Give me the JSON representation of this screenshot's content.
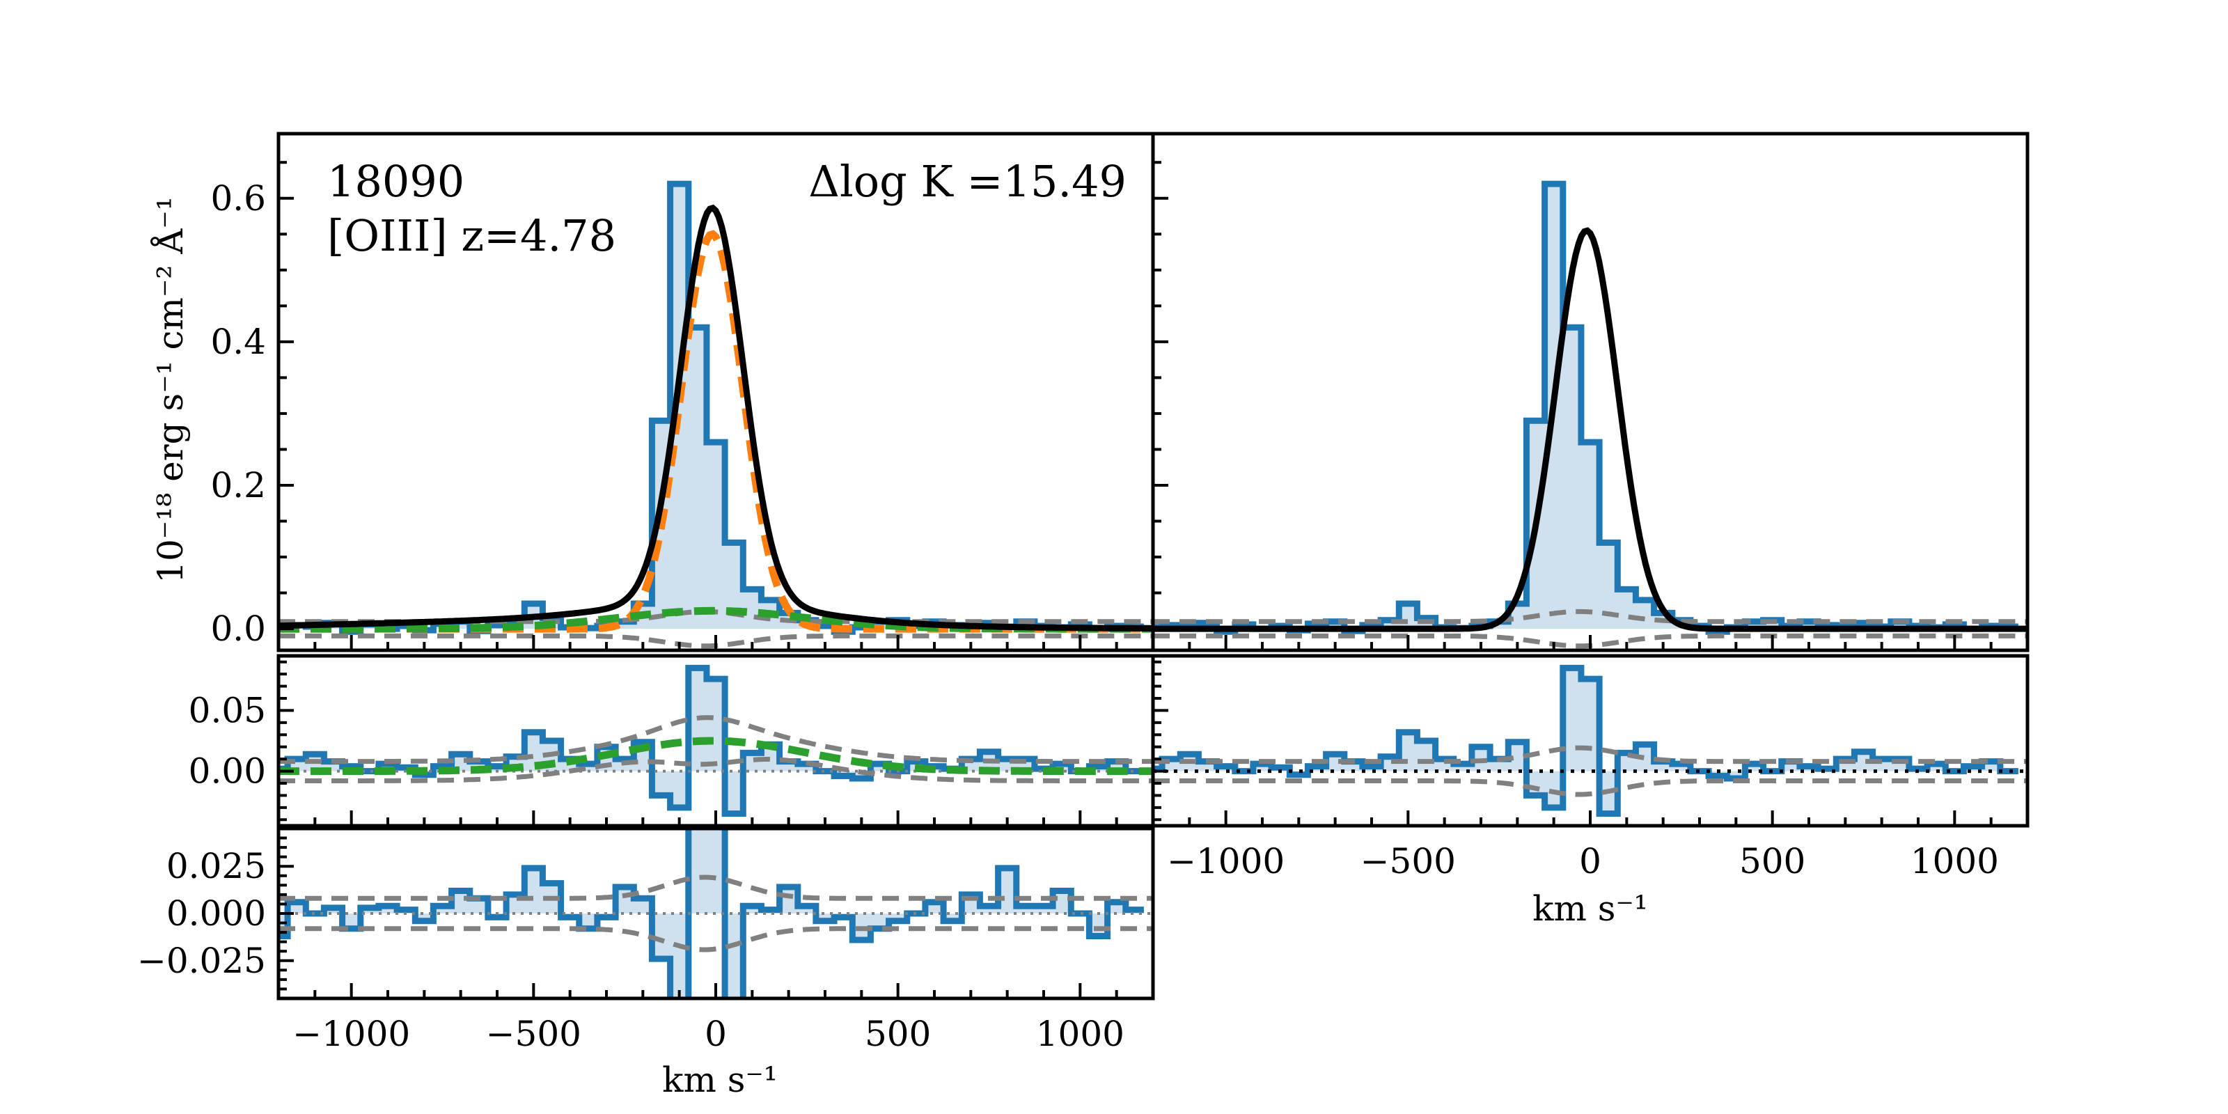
{
  "chart_data": {
    "type": "line",
    "object_id": "18090",
    "line_label": "[OIII] z=4.78",
    "delta_label": "Δlog K =15.49",
    "ylabel": "10⁻¹⁸ erg s⁻¹ cm⁻² Å⁻¹",
    "xlabel": "km s⁻¹",
    "xlim": [
      -1200,
      1200
    ],
    "x_ticks": [
      -1000,
      -500,
      0,
      500,
      1000
    ],
    "x_tick_labels": [
      "−1000",
      "−500",
      "0",
      "500",
      "1000"
    ],
    "panels": {
      "top_left": {
        "ylim": [
          -0.03,
          0.69
        ],
        "y_ticks": [
          0,
          0.2,
          0.4,
          0.6
        ],
        "y_tick_labels": [
          "0.0",
          "0.2",
          "0.4",
          "0.6"
        ],
        "components": [
          "data",
          "total_fit",
          "narrow",
          "broad",
          "noise"
        ]
      },
      "top_right": {
        "ylim": [
          -0.03,
          0.69
        ],
        "y_ticks": [
          0,
          0.2,
          0.4,
          0.6
        ],
        "components": [
          "data",
          "total_fit",
          "noise"
        ]
      },
      "mid_left": {
        "ylim": [
          -0.045,
          0.095
        ],
        "y_ticks": [
          0,
          0.05
        ],
        "y_tick_labels": [
          "0.00",
          "0.05"
        ],
        "components": [
          "data",
          "broad",
          "noise"
        ]
      },
      "mid_right": {
        "ylim": [
          -0.045,
          0.095
        ],
        "y_ticks": [
          0,
          0.05
        ],
        "components": [
          "data",
          "zero_line",
          "noise"
        ]
      },
      "bottom_left": {
        "ylim": [
          -0.045,
          0.045
        ],
        "y_ticks": [
          -0.025,
          0,
          0.025
        ],
        "y_tick_labels": [
          "−0.025",
          "0.000",
          "0.025"
        ],
        "components": [
          "data",
          "noise"
        ]
      }
    },
    "spectrum": {
      "x": [
        -1200,
        -1150,
        -1100,
        -1050,
        -1000,
        -950,
        -900,
        -850,
        -800,
        -750,
        -700,
        -650,
        -600,
        -550,
        -500,
        -450,
        -400,
        -350,
        -300,
        -250,
        -200,
        -150,
        -100,
        -50,
        0,
        50,
        100,
        150,
        200,
        250,
        300,
        350,
        400,
        450,
        500,
        550,
        600,
        650,
        700,
        750,
        800,
        850,
        900,
        950,
        1000,
        1050,
        1100,
        1150
      ],
      "y_full": [
        0.002,
        0.005,
        0.003,
        0.008,
        -0.004,
        0.006,
        0.0,
        0.004,
        -0.002,
        0.007,
        0.01,
        -0.003,
        0.005,
        0.012,
        0.035,
        0.015,
        0.002,
        0.001,
        0.004,
        0.01,
        0.035,
        0.29,
        0.62,
        0.42,
        0.26,
        0.12,
        0.055,
        0.04,
        0.022,
        0.012,
        0.004,
        -0.004,
        0.002,
        0.01,
        0.012,
        0.004,
        0.01,
        0.005,
        0.004,
        0.008,
        0.003,
        0.01,
        0.004,
        0.002,
        0.006,
        0.0,
        0.004,
        0.003
      ],
      "y_mid": [
        0.002,
        0.01,
        0.014,
        0.008,
        0.004,
        0.0,
        0.006,
        0.003,
        -0.003,
        0.004,
        0.014,
        0.008,
        0.004,
        0.012,
        0.032,
        0.025,
        0.01,
        0.006,
        0.02,
        0.01,
        0.024,
        -0.02,
        -0.03,
        0.085,
        0.076,
        -0.035,
        0.015,
        0.022,
        0.008,
        0.006,
        0.0,
        -0.004,
        -0.006,
        0.006,
        0.0,
        0.008,
        0.004,
        0.002,
        0.01,
        0.016,
        0.01,
        0.01,
        0.002,
        0.006,
        0.0,
        0.004,
        0.008,
        0.0
      ],
      "y_bottom": [
        -0.012,
        0.006,
        0.0,
        0.003,
        -0.008,
        0.003,
        0.004,
        0.002,
        -0.004,
        0.004,
        0.012,
        0.008,
        -0.002,
        0.01,
        0.024,
        0.016,
        -0.002,
        -0.008,
        -0.002,
        0.014,
        0.008,
        -0.024,
        -0.07,
        0.09,
        0.06,
        -0.07,
        0.004,
        0.002,
        0.014,
        0.004,
        -0.004,
        -0.002,
        -0.014,
        -0.008,
        -0.004,
        0.0,
        0.006,
        -0.004,
        0.01,
        0.004,
        0.024,
        0.004,
        0.004,
        0.012,
        0.0,
        -0.012,
        0.006,
        0.002
      ]
    },
    "narrow_component": {
      "center": -10,
      "sigma": 85,
      "amplitude": 0.55
    },
    "broad_component": {
      "center": -10,
      "sigma": 260,
      "amplitude": 0.025
    },
    "wing_component": {
      "center": -300,
      "sigma": 600,
      "amplitude": 0.013
    },
    "right_fit": {
      "center": -10,
      "sigma": 85,
      "amplitude": 0.555
    },
    "noise_scale": {
      "top": 0.01,
      "mid": 0.008,
      "bottom": 0.008
    },
    "colors": {
      "data": "#1f77b4",
      "data_fill": "#cfe1ef",
      "fit": "#000000",
      "narrow": "#ff7f0e",
      "broad": "#2ca02c",
      "noise": "#808080",
      "zero": "#000000"
    }
  }
}
